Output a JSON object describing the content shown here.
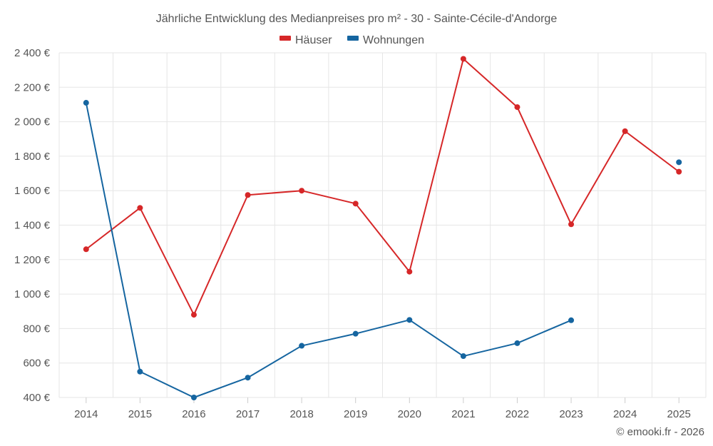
{
  "chart_data": {
    "type": "line",
    "title": "Jährliche Entwicklung des Medianpreises pro m² - 30 - Sainte-Cécile-d'Andorge",
    "categories": [
      "2014",
      "2015",
      "2016",
      "2017",
      "2018",
      "2019",
      "2020",
      "2021",
      "2022",
      "2023",
      "2024",
      "2025"
    ],
    "series": [
      {
        "name": "Häuser",
        "color": "#d62728",
        "values": [
          1260,
          1500,
          880,
          1575,
          1600,
          1525,
          1130,
          2365,
          2085,
          1405,
          1945,
          1710
        ]
      },
      {
        "name": "Wohnungen",
        "color": "#1565a0",
        "values": [
          2110,
          550,
          400,
          515,
          700,
          770,
          850,
          640,
          715,
          848,
          null,
          1765
        ]
      }
    ],
    "ylim": [
      400,
      2400
    ],
    "yticks": [
      400,
      600,
      800,
      1000,
      1200,
      1400,
      1600,
      1800,
      2000,
      2200,
      2400
    ],
    "ytick_labels": [
      "400 €",
      "600 €",
      "800 €",
      "1 000 €",
      "1 200 €",
      "1 400 €",
      "1 600 €",
      "1 800 €",
      "2 000 €",
      "2 200 €",
      "2 400 €"
    ],
    "xlabel": "",
    "ylabel": "",
    "grid": true,
    "legend_position": "top-center"
  },
  "credit": "© emooki.fr - 2026"
}
